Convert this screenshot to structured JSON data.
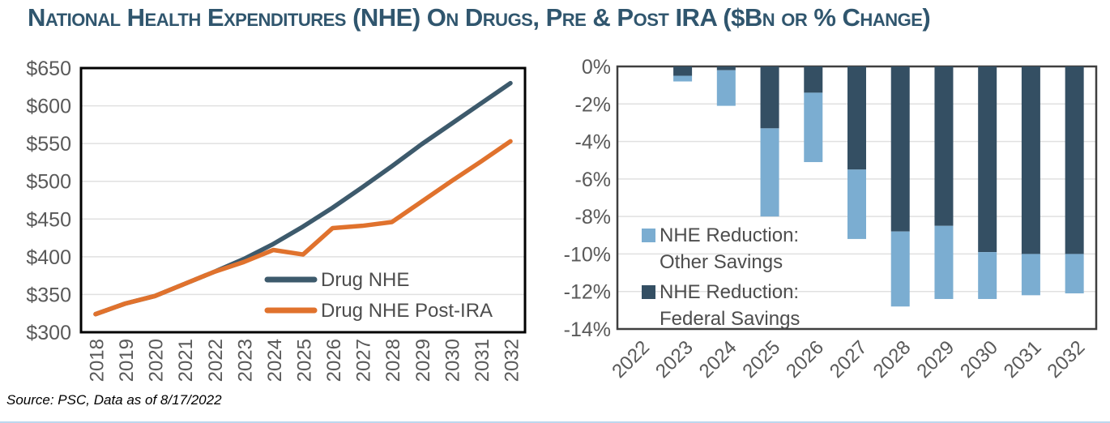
{
  "title": "National Health Expenditures (NHE) On Drugs, Pre & Post IRA ($Bn or % Change)",
  "source": "Source: PSC, Data as of 8/17/2022",
  "colors": {
    "title": "#30566E",
    "drug_nhe_line": "#3D5A6C",
    "drug_nhe_post_ira_line": "#E0722D",
    "other_savings_bar": "#7BADD1",
    "federal_savings_bar": "#344F63",
    "axis_text": "#595959",
    "legend_text": "#4D4D4D",
    "gridline": "#E0E0E0",
    "left_plot_border": "#000000",
    "right_plot_border": "#3F3F3F",
    "bottom_rule": "#BDD7EE"
  },
  "chart_data": [
    {
      "type": "line",
      "title": "",
      "x": [
        "2018",
        "2019",
        "2020",
        "2021",
        "2022",
        "2023",
        "2024",
        "2025",
        "2026",
        "2027",
        "2028",
        "2029",
        "2030",
        "2031",
        "2032"
      ],
      "series": [
        {
          "name": "Drug NHE",
          "color": "#3D5A6C",
          "values": [
            324,
            338,
            348,
            364,
            380,
            397,
            417,
            440,
            465,
            492,
            520,
            549,
            576,
            603,
            630
          ]
        },
        {
          "name": "Drug NHE Post-IRA",
          "color": "#E0722D",
          "values": [
            324,
            338,
            348,
            364,
            380,
            393,
            409,
            403,
            438,
            441,
            446,
            473,
            500,
            526,
            553
          ]
        }
      ],
      "xlabel": "",
      "ylabel": "",
      "ylim": [
        300,
        650
      ],
      "yticks": [
        300,
        350,
        400,
        450,
        500,
        550,
        600,
        650
      ],
      "ytick_labels": [
        "$300",
        "$350",
        "$400",
        "$450",
        "$500",
        "$550",
        "$600",
        "$650"
      ],
      "grid": true,
      "legend_position": "inside-bottom-right"
    },
    {
      "type": "bar",
      "subtype": "stacked-vertical-negative",
      "title": "",
      "categories": [
        "2022",
        "2023",
        "2024",
        "2025",
        "2026",
        "2027",
        "2028",
        "2029",
        "2030",
        "2031",
        "2032"
      ],
      "series": [
        {
          "name": "NHE Reduction: Other Savings",
          "color": "#7BADD1",
          "legend_lines": [
            "NHE Reduction:",
            "Other Savings"
          ],
          "values": [
            0,
            -0.3,
            -1.9,
            -4.7,
            -3.7,
            -3.7,
            -4.0,
            -3.9,
            -2.5,
            -2.2,
            -2.1
          ]
        },
        {
          "name": "NHE Reduction: Federal Savings",
          "color": "#344F63",
          "legend_lines": [
            "NHE Reduction:",
            "Federal Savings"
          ],
          "values": [
            0,
            -0.5,
            -0.2,
            -3.3,
            -1.4,
            -5.5,
            -8.8,
            -8.5,
            -9.9,
            -10.0,
            -10.0
          ]
        }
      ],
      "stack_order_series_indexes": [
        1,
        0
      ],
      "xlabel": "",
      "ylabel": "",
      "ylim": [
        -14,
        0
      ],
      "yticks": [
        0,
        -2,
        -4,
        -6,
        -8,
        -10,
        -12,
        -14
      ],
      "ytick_labels": [
        "0%",
        "-2%",
        "-4%",
        "-6%",
        "-8%",
        "-10%",
        "-12%",
        "-14%"
      ],
      "grid": true,
      "legend_position": "inside-left"
    }
  ]
}
